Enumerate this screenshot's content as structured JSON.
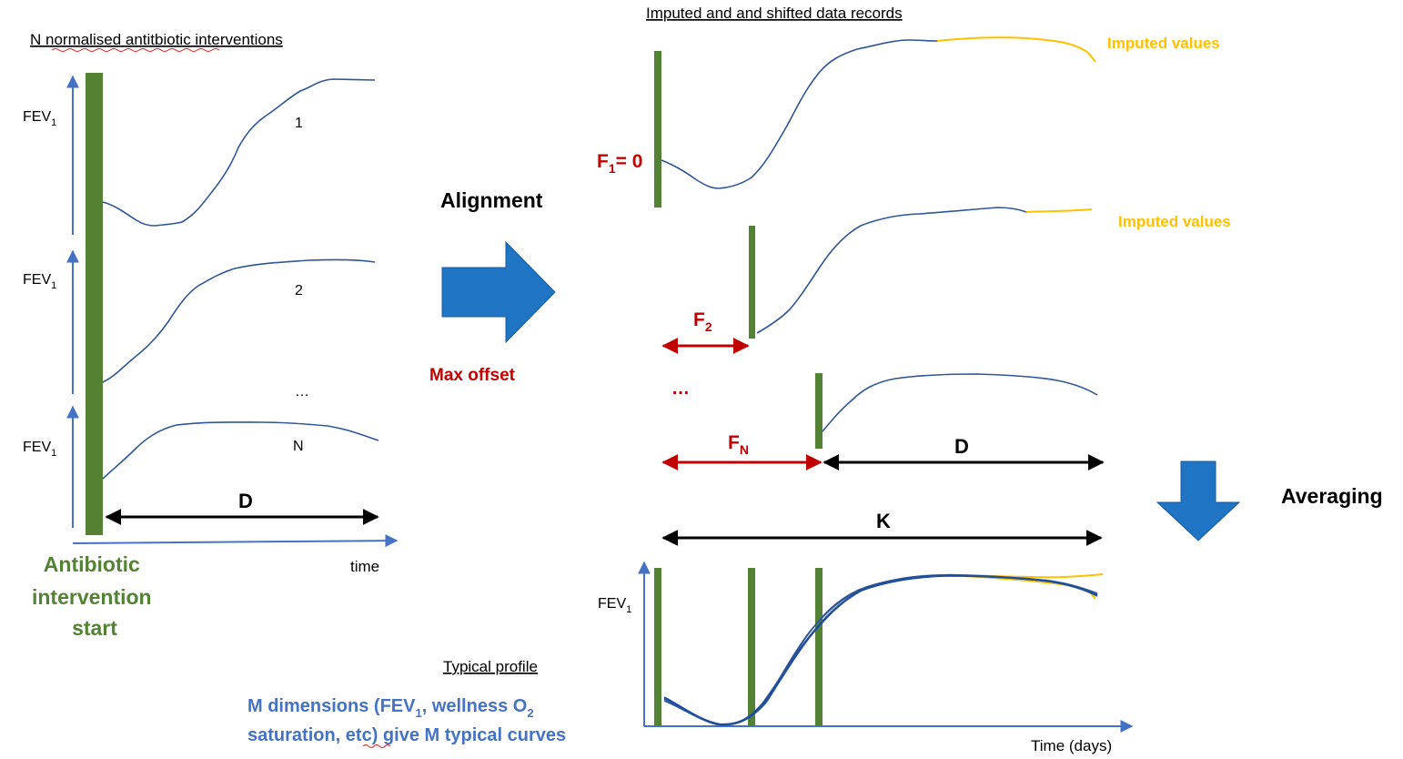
{
  "titles": {
    "left": "N normalised antitbiotic interventions",
    "right": "Imputed and and shifted data records",
    "typical": "Typical profile"
  },
  "left_panel": {
    "fev_label_main": "FEV",
    "fev_label_sub": "1",
    "curve_labels": [
      "1",
      "2",
      "…",
      "N"
    ],
    "duration_label": "D",
    "time_label": "time",
    "intervention_lines": [
      "Antibiotic",
      "intervention",
      "start"
    ]
  },
  "middle": {
    "alignment_label": "Alignment",
    "max_offset_label": "Max offset"
  },
  "right_panel": {
    "f1_main": "F",
    "f1_sub": "1",
    "f1_suffix": "= 0",
    "f2_main": "F",
    "f2_sub": "2",
    "fn_main": "F",
    "fn_sub": "N",
    "ellipsis": "…",
    "imputed_label": "Imputed values",
    "duration_label": "D",
    "total_label": "K",
    "averaging_label": "Averaging"
  },
  "bottom_panel": {
    "fev_label_main": "FEV",
    "fev_label_sub": "1",
    "time_label": "Time (days)",
    "note_line1_a": "M dimensions (FEV",
    "note_line1_sub1": "1",
    "note_line1_b": ", wellness O",
    "note_line1_sub2": "2",
    "note_line2": "saturation, etc) give M typical curves"
  },
  "colors": {
    "axis": "#4472c4",
    "curve": "#2f5597",
    "bar": "#548235",
    "offset": "#c00000",
    "imputed": "#ffc000",
    "arrow_fill": "#1f74c4",
    "note": "#4472c4"
  }
}
